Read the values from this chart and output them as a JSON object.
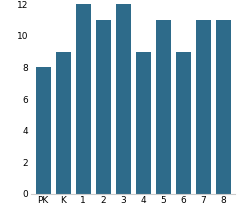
{
  "categories": [
    "PK",
    "K",
    "1",
    "2",
    "3",
    "4",
    "5",
    "6",
    "7",
    "8"
  ],
  "values": [
    8,
    9,
    12,
    11,
    12,
    9,
    11,
    9,
    11,
    11
  ],
  "bar_color": "#2e6b8a",
  "ylim": [
    0,
    12
  ],
  "yticks": [
    0,
    2,
    4,
    6,
    8,
    10,
    12
  ],
  "background_color": "#ffffff",
  "bar_width": 0.75,
  "tick_fontsize": 6.5
}
